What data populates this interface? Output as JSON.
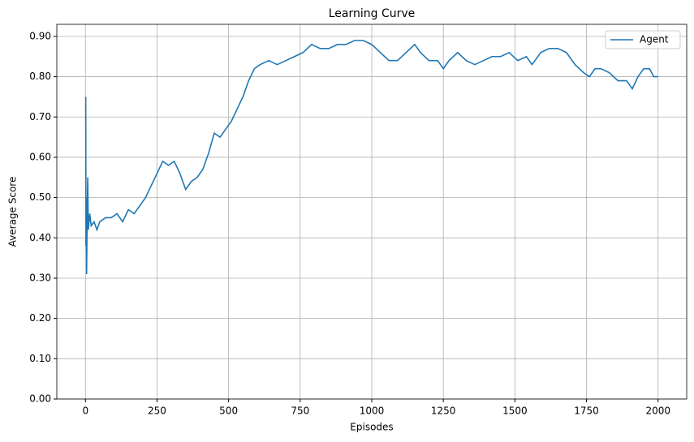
{
  "chart_data": {
    "type": "line",
    "title": "Learning Curve",
    "x_label": "Episodes",
    "y_label": "Average Score",
    "x": [
      1,
      2,
      3,
      4,
      6,
      8,
      10,
      15,
      20,
      30,
      40,
      50,
      70,
      90,
      110,
      130,
      150,
      170,
      190,
      210,
      230,
      250,
      270,
      290,
      310,
      330,
      350,
      370,
      390,
      410,
      430,
      450,
      470,
      490,
      510,
      530,
      550,
      570,
      590,
      610,
      640,
      670,
      700,
      730,
      760,
      790,
      820,
      850,
      880,
      910,
      940,
      970,
      1000,
      1030,
      1060,
      1090,
      1120,
      1150,
      1170,
      1200,
      1230,
      1250,
      1270,
      1300,
      1330,
      1360,
      1390,
      1420,
      1450,
      1480,
      1510,
      1540,
      1560,
      1590,
      1620,
      1650,
      1680,
      1710,
      1740,
      1760,
      1780,
      1800,
      1830,
      1860,
      1890,
      1910,
      1930,
      1950,
      1970,
      1985,
      2000
    ],
    "series": [
      {
        "name": "Agent",
        "color": "#1f77b4",
        "values": [
          0.75,
          0.38,
          0.5,
          0.31,
          0.45,
          0.55,
          0.42,
          0.46,
          0.43,
          0.44,
          0.42,
          0.44,
          0.45,
          0.45,
          0.46,
          0.44,
          0.47,
          0.46,
          0.48,
          0.5,
          0.53,
          0.56,
          0.59,
          0.58,
          0.59,
          0.56,
          0.52,
          0.54,
          0.55,
          0.57,
          0.61,
          0.66,
          0.65,
          0.67,
          0.69,
          0.72,
          0.75,
          0.79,
          0.82,
          0.83,
          0.84,
          0.83,
          0.84,
          0.85,
          0.86,
          0.88,
          0.87,
          0.87,
          0.88,
          0.88,
          0.89,
          0.89,
          0.88,
          0.86,
          0.84,
          0.84,
          0.86,
          0.88,
          0.86,
          0.84,
          0.84,
          0.82,
          0.84,
          0.86,
          0.84,
          0.83,
          0.84,
          0.85,
          0.85,
          0.86,
          0.84,
          0.85,
          0.83,
          0.86,
          0.87,
          0.87,
          0.86,
          0.83,
          0.81,
          0.8,
          0.82,
          0.82,
          0.81,
          0.79,
          0.79,
          0.77,
          0.8,
          0.82,
          0.82,
          0.8,
          0.8
        ]
      }
    ],
    "xlim": [
      -100,
      2100
    ],
    "xticks": [
      0,
      250,
      500,
      750,
      1000,
      1250,
      1500,
      1750,
      2000
    ],
    "ylim": [
      0,
      0.93
    ],
    "yticks": [
      {
        "value": 0,
        "label": "0.00"
      },
      {
        "value": 0.1,
        "label": "0.10"
      },
      {
        "value": 0.2,
        "label": "0.20"
      },
      {
        "value": 0.3,
        "label": "0.30"
      },
      {
        "value": 0.4,
        "label": "0.40"
      },
      {
        "value": 0.5,
        "label": "0.50"
      },
      {
        "value": 0.6,
        "label": "0.60"
      },
      {
        "value": 0.7,
        "label": "0.70"
      },
      {
        "value": 0.8,
        "label": "0.80"
      },
      {
        "value": 0.9,
        "label": "0.90"
      }
    ],
    "grid": true,
    "legend": "upper right"
  }
}
